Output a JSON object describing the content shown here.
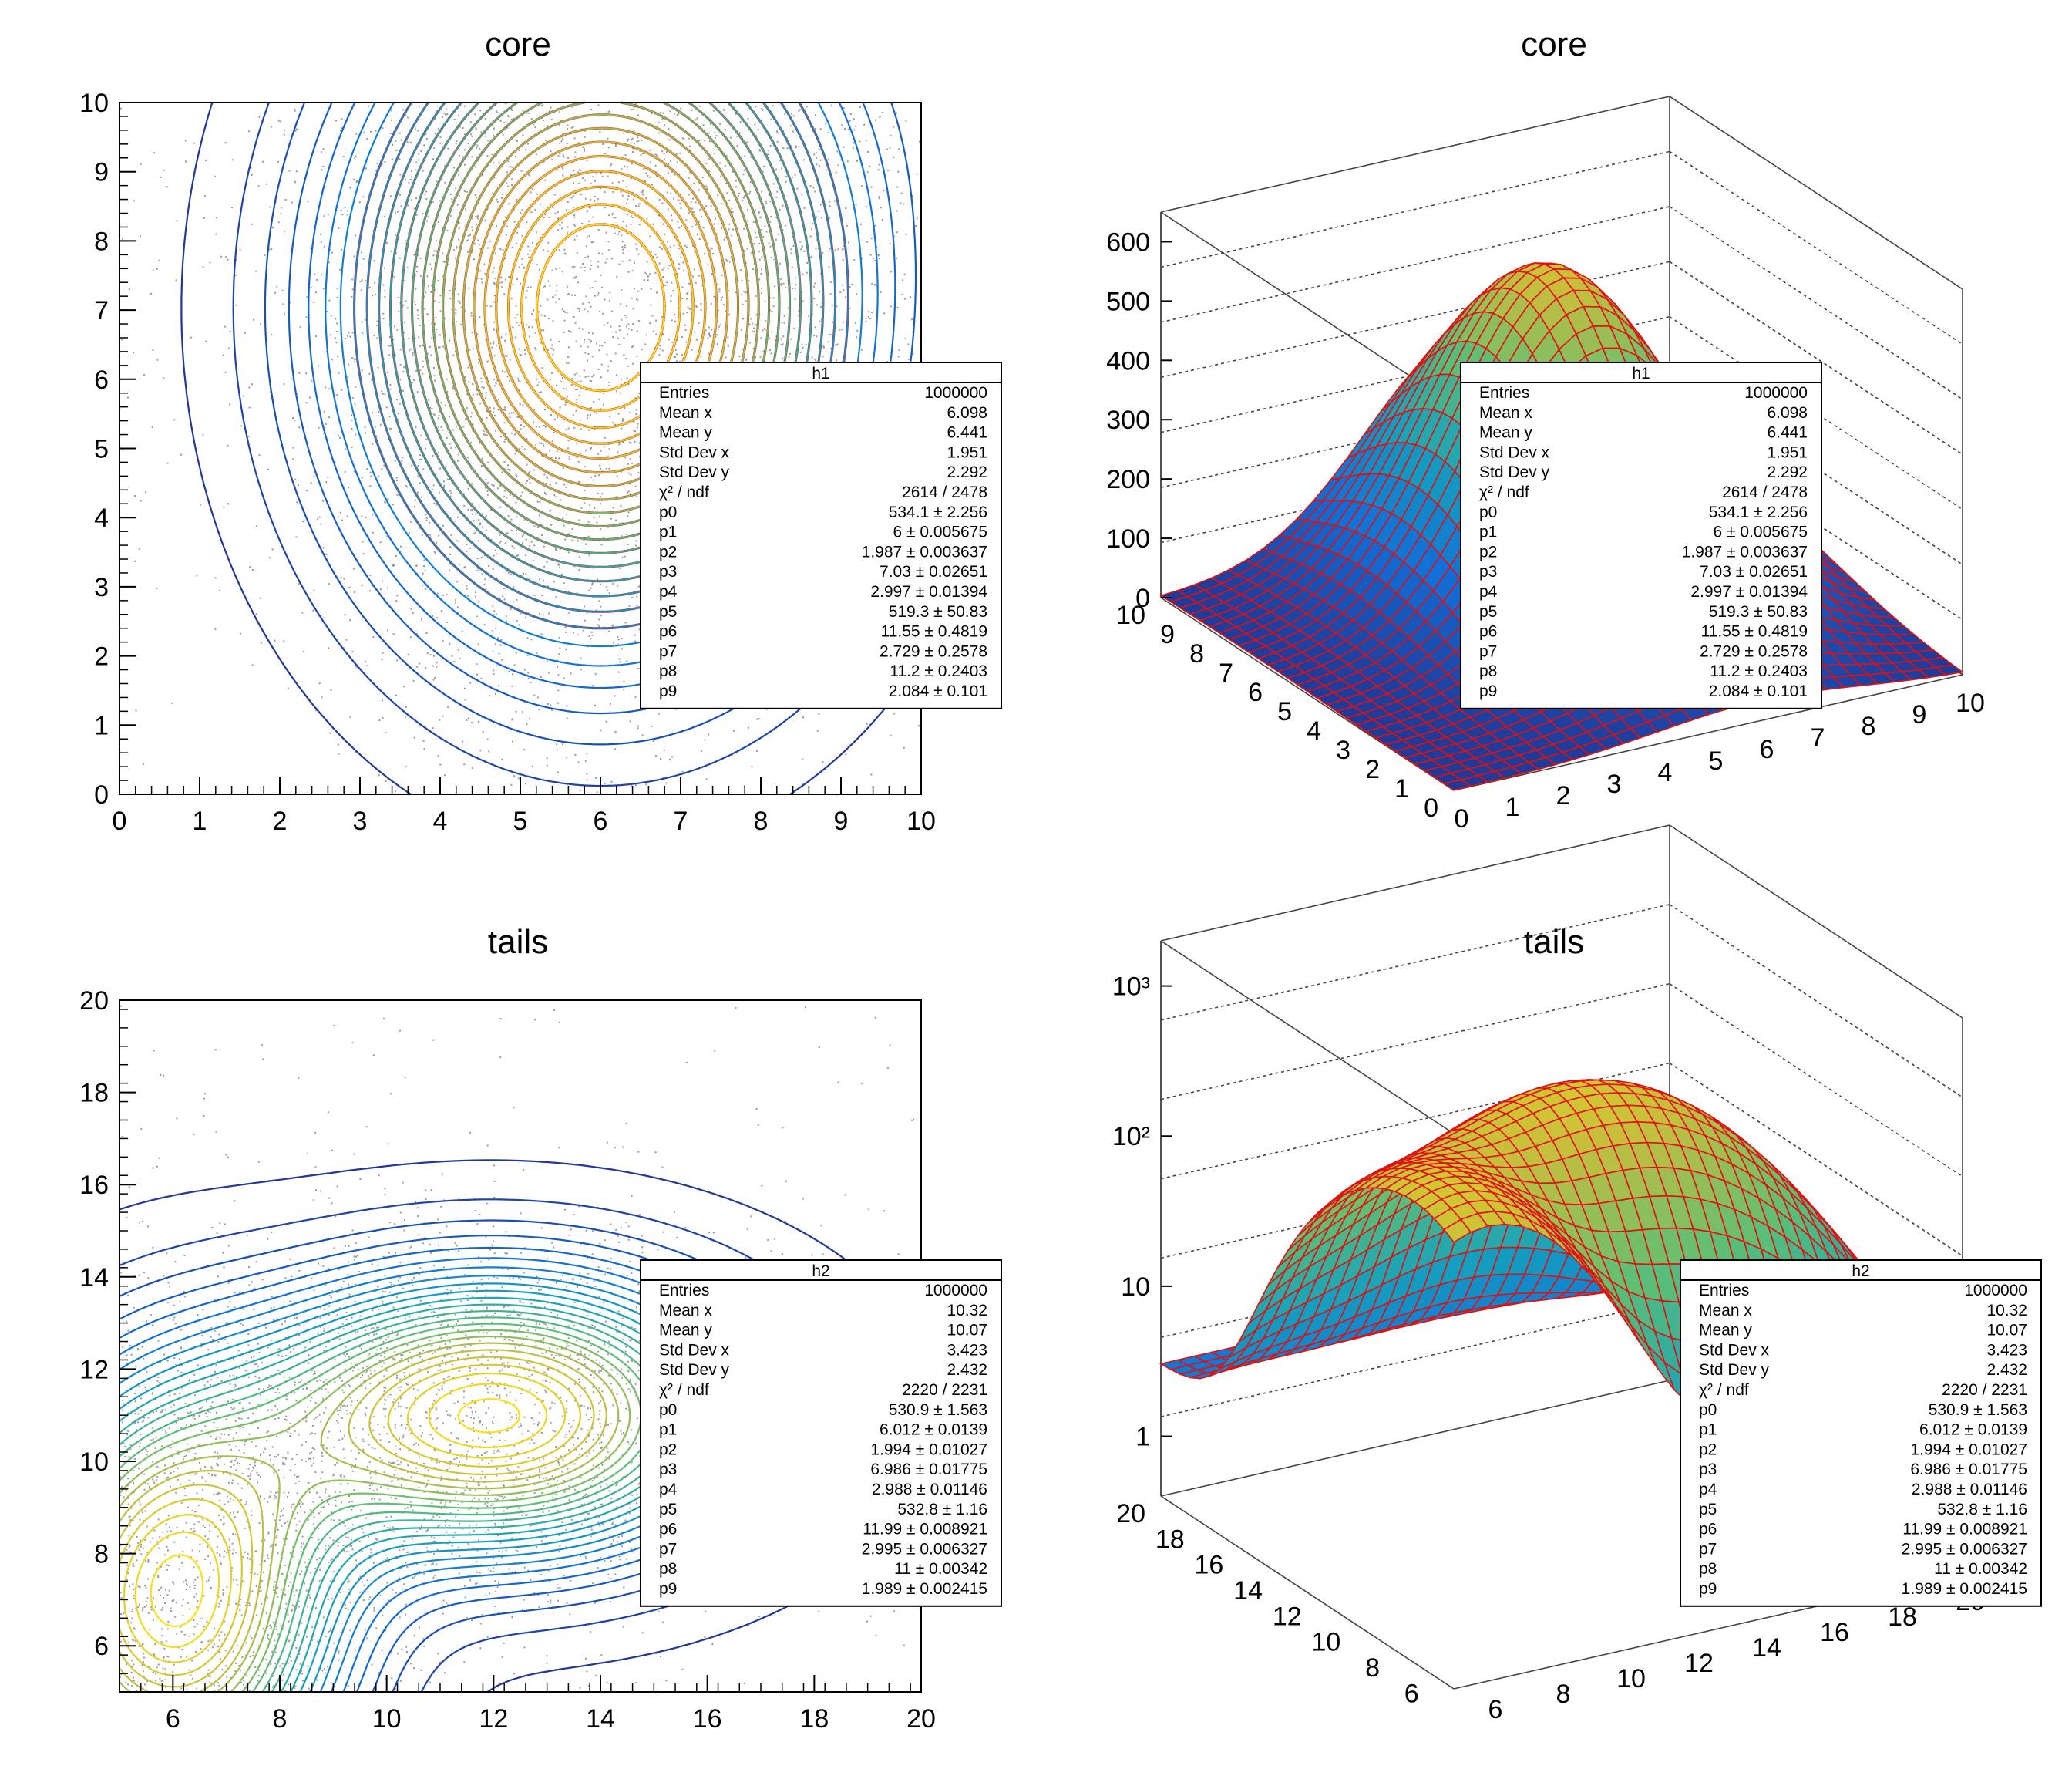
{
  "panels": [
    {
      "id": "core-2d",
      "title": "core",
      "kind": "contour",
      "x_ticks": [
        "0",
        "1",
        "2",
        "3",
        "4",
        "5",
        "6",
        "7",
        "8",
        "9",
        "10"
      ],
      "y_ticks": [
        "0",
        "1",
        "2",
        "3",
        "4",
        "5",
        "6",
        "7",
        "8",
        "9",
        "10"
      ],
      "stats": {
        "name": "h1",
        "rows": [
          [
            "Entries",
            "1000000"
          ],
          [
            "Mean x",
            "6.098"
          ],
          [
            "Mean y",
            "6.441"
          ],
          [
            "Std Dev x",
            "1.951"
          ],
          [
            "Std Dev y",
            "2.292"
          ],
          [
            "χ² / ndf",
            "2614 / 2478"
          ],
          [
            "p0",
            "534.1 ± 2.256"
          ],
          [
            "p1",
            "6 ± 0.005675"
          ],
          [
            "p2",
            "1.987 ± 0.003637"
          ],
          [
            "p3",
            "7.03 ± 0.02651"
          ],
          [
            "p4",
            "2.997 ± 0.01394"
          ],
          [
            "p5",
            "519.3 ± 50.83"
          ],
          [
            "p6",
            "11.55 ± 0.4819"
          ],
          [
            "p7",
            "2.729 ± 0.2578"
          ],
          [
            "p8",
            "11.2 ± 0.2403"
          ],
          [
            "p9",
            "2.084 ± 0.101"
          ]
        ]
      }
    },
    {
      "id": "core-3d",
      "title": "core",
      "kind": "surface",
      "z_ticks": [
        "0",
        "100",
        "200",
        "300",
        "400",
        "500",
        "600"
      ],
      "y_ticks": [
        "0",
        "1",
        "2",
        "3",
        "4",
        "5",
        "6",
        "7",
        "8",
        "9",
        "10"
      ],
      "x_ticks": [
        "0",
        "1",
        "2",
        "3",
        "4",
        "5",
        "6",
        "7",
        "8",
        "9",
        "10"
      ],
      "stats": {
        "name": "h1",
        "rows": [
          [
            "Entries",
            "1000000"
          ],
          [
            "Mean x",
            "6.098"
          ],
          [
            "Mean y",
            "6.441"
          ],
          [
            "Std Dev x",
            "1.951"
          ],
          [
            "Std Dev y",
            "2.292"
          ],
          [
            "χ² / ndf",
            "2614 / 2478"
          ],
          [
            "p0",
            "534.1 ± 2.256"
          ],
          [
            "p1",
            "6 ± 0.005675"
          ],
          [
            "p2",
            "1.987 ± 0.003637"
          ],
          [
            "p3",
            "7.03 ± 0.02651"
          ],
          [
            "p4",
            "2.997 ± 0.01394"
          ],
          [
            "p5",
            "519.3 ± 50.83"
          ],
          [
            "p6",
            "11.55 ± 0.4819"
          ],
          [
            "p7",
            "2.729 ± 0.2578"
          ],
          [
            "p8",
            "11.2 ± 0.2403"
          ],
          [
            "p9",
            "2.084 ± 0.101"
          ]
        ]
      }
    },
    {
      "id": "tails-2d",
      "title": "tails",
      "kind": "contour",
      "x_ticks": [
        "6",
        "8",
        "10",
        "12",
        "14",
        "16",
        "18",
        "20"
      ],
      "y_ticks": [
        "6",
        "8",
        "10",
        "12",
        "14",
        "16",
        "18",
        "20"
      ],
      "stats": {
        "name": "h2",
        "rows": [
          [
            "Entries",
            "1000000"
          ],
          [
            "Mean x",
            "10.32"
          ],
          [
            "Mean y",
            "10.07"
          ],
          [
            "Std Dev x",
            "3.423"
          ],
          [
            "Std Dev y",
            "2.432"
          ],
          [
            "χ² / ndf",
            "2220 / 2231"
          ],
          [
            "p0",
            "530.9 ± 1.563"
          ],
          [
            "p1",
            "6.012 ± 0.0139"
          ],
          [
            "p2",
            "1.994 ± 0.01027"
          ],
          [
            "p3",
            "6.986 ± 0.01775"
          ],
          [
            "p4",
            "2.988 ± 0.01146"
          ],
          [
            "p5",
            "532.8 ±  1.16"
          ],
          [
            "p6",
            "11.99 ± 0.008921"
          ],
          [
            "p7",
            "2.995 ± 0.006327"
          ],
          [
            "p8",
            "11 ± 0.00342"
          ],
          [
            "p9",
            "1.989 ± 0.002415"
          ]
        ]
      }
    },
    {
      "id": "tails-3d",
      "title": "tails",
      "kind": "surface-log",
      "z_ticks": [
        "1",
        "10",
        "10²",
        "10³"
      ],
      "y_ticks": [
        "6",
        "8",
        "10",
        "12",
        "14",
        "16",
        "18",
        "20"
      ],
      "x_ticks": [
        "6",
        "8",
        "10",
        "12",
        "14",
        "16",
        "18",
        "20"
      ],
      "stats": {
        "name": "h2",
        "rows": [
          [
            "Entries",
            "1000000"
          ],
          [
            "Mean x",
            "10.32"
          ],
          [
            "Mean y",
            "10.07"
          ],
          [
            "Std Dev x",
            "3.423"
          ],
          [
            "Std Dev y",
            "2.432"
          ],
          [
            "χ² / ndf",
            "2220 / 2231"
          ],
          [
            "p0",
            "530.9 ± 1.563"
          ],
          [
            "p1",
            "6.012 ± 0.0139"
          ],
          [
            "p2",
            "1.994 ± 0.01027"
          ],
          [
            "p3",
            "6.986 ± 0.01775"
          ],
          [
            "p4",
            "2.988 ± 0.01146"
          ],
          [
            "p5",
            "532.8 ±  1.16"
          ],
          [
            "p6",
            "11.99 ± 0.008921"
          ],
          [
            "p7",
            "2.995 ± 0.006327"
          ],
          [
            "p8",
            "11 ± 0.00342"
          ],
          [
            "p9",
            "1.989 ± 0.002415"
          ]
        ]
      }
    }
  ],
  "chart_data": [
    {
      "type": "heatmap",
      "title": "core",
      "xlim": [
        0,
        10
      ],
      "ylim": [
        0,
        10
      ],
      "x_ticks": [
        0,
        1,
        2,
        3,
        4,
        5,
        6,
        7,
        8,
        9,
        10
      ],
      "y_ticks": [
        0,
        1,
        2,
        3,
        4,
        5,
        6,
        7,
        8,
        9,
        10
      ],
      "peak": [
        6.0,
        7.0
      ],
      "contours": true
    },
    {
      "type": "heatmap",
      "title": "core",
      "xlim": [
        0,
        10
      ],
      "ylim": [
        0,
        10
      ],
      "zlim": [
        0,
        650
      ],
      "x_ticks": [
        0,
        1,
        2,
        3,
        4,
        5,
        6,
        7,
        8,
        9,
        10
      ],
      "y_ticks": [
        0,
        1,
        2,
        3,
        4,
        5,
        6,
        7,
        8,
        9,
        10
      ],
      "z_ticks": [
        0,
        100,
        200,
        300,
        400,
        500,
        600
      ],
      "peak": [
        6.0,
        7.0
      ],
      "peak_z": 610
    },
    {
      "type": "heatmap",
      "title": "tails",
      "xlim": [
        5,
        20
      ],
      "ylim": [
        5,
        20
      ],
      "x_ticks": [
        6,
        8,
        10,
        12,
        14,
        16,
        18,
        20
      ],
      "y_ticks": [
        6,
        8,
        10,
        12,
        14,
        16,
        18,
        20
      ],
      "peaks": [
        [
          6.0,
          7.0
        ],
        [
          12.0,
          11.0
        ]
      ],
      "contours": true
    },
    {
      "type": "heatmap",
      "title": "tails",
      "xlim": [
        5,
        20
      ],
      "ylim": [
        5,
        20
      ],
      "zlim": [
        0.4,
        2000
      ],
      "z_scale": "log",
      "x_ticks": [
        6,
        8,
        10,
        12,
        14,
        16,
        18,
        20
      ],
      "y_ticks": [
        6,
        8,
        10,
        12,
        14,
        16,
        18,
        20
      ],
      "z_ticks": [
        1,
        10,
        100,
        1000
      ]
    }
  ]
}
